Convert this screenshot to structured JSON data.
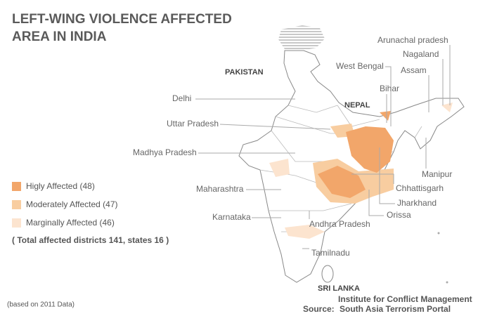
{
  "title_lines": [
    "LEFT-WING VIOLENCE AFFECTED",
    "AREA IN INDIA"
  ],
  "countries": [
    "PAKISTAN",
    "NEPAL",
    "SRI LANKA"
  ],
  "state_labels": [
    "Arunachal pradesh",
    "Nagaland",
    "West Bengal",
    "Assam",
    "Bihar",
    "Delhi",
    "Uttar Pradesh",
    "Madhya Pradesh",
    "Manipur",
    "Chhattisgarh",
    "Maharashtra",
    "Jharkhand",
    "Karnataka",
    "Orissa",
    "Andhra Pradesh",
    "Tamilnadu"
  ],
  "legend": [
    {
      "label": "Higly Affected (48)",
      "color": "#f2a66a"
    },
    {
      "label": "Moderately Affected (47)",
      "color": "#f8cda0"
    },
    {
      "label": "Marginally  Affected (46)",
      "color": "#fce4cf"
    }
  ],
  "total_note": "( Total affected districts 141, states 16 )",
  "footnote": "(based on 2011 Data)",
  "source": {
    "label": "Source:",
    "lines": [
      "Institute for Conflict Management",
      "South Asia Terrorism Portal"
    ]
  }
}
